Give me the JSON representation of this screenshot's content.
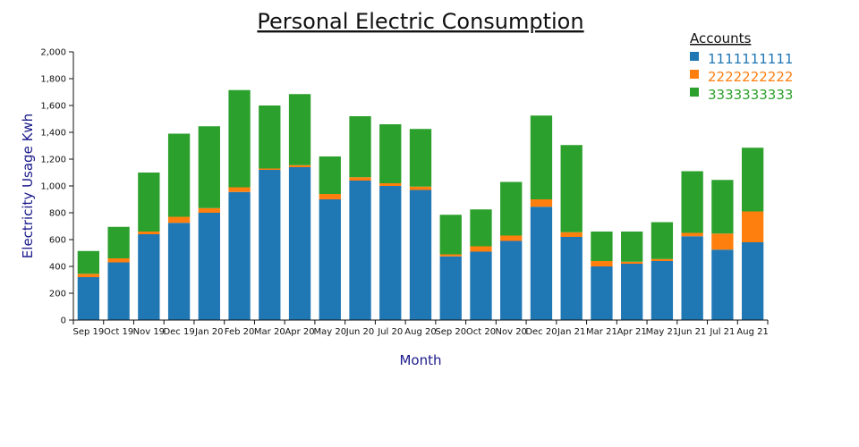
{
  "chart_data": {
    "type": "bar",
    "stacked": true,
    "title": "Personal Electric Consumption",
    "xlabel": "Month",
    "ylabel": "Electricity Usage Kwh",
    "ylim": [
      0,
      2000
    ],
    "yticks": [
      0,
      200,
      400,
      600,
      800,
      1000,
      1200,
      1400,
      1600,
      1800,
      2000
    ],
    "ytick_labels": [
      "0",
      "200",
      "400",
      "600",
      "800",
      "1,000",
      "1,200",
      "1,400",
      "1,600",
      "1,800",
      "2,000"
    ],
    "grid": false,
    "legend_title": "Accounts",
    "legend_position": "top-right",
    "categories": [
      "Sep 19",
      "Oct 19",
      "Nov 19",
      "Dec 19",
      "Jan 20",
      "Feb 20",
      "Mar 20",
      "Apr 20",
      "May 20",
      "Jun 20",
      "Jul 20",
      "Aug 20",
      "Sep 20",
      "Oct 20",
      "Nov 20",
      "Dec 20",
      "Jan 21",
      "Mar 21",
      "Apr 21",
      "May 21",
      "Jun 21",
      "Jul 21",
      "Aug 21"
    ],
    "series": [
      {
        "name": "1111111111",
        "color": "#1f77b4",
        "values": [
          320,
          430,
          640,
          725,
          800,
          955,
          1120,
          1140,
          900,
          1040,
          1000,
          970,
          475,
          510,
          590,
          845,
          620,
          400,
          420,
          440,
          625,
          525,
          580
        ]
      },
      {
        "name": "2222222222",
        "color": "#ff7f0e",
        "values": [
          25,
          30,
          20,
          45,
          35,
          35,
          10,
          15,
          40,
          25,
          20,
          25,
          15,
          40,
          40,
          55,
          35,
          40,
          15,
          15,
          25,
          120,
          230
        ]
      },
      {
        "name": "3333333333",
        "color": "#2ca02c",
        "values": [
          170,
          235,
          440,
          620,
          610,
          725,
          470,
          530,
          280,
          455,
          440,
          430,
          295,
          275,
          400,
          625,
          650,
          220,
          225,
          275,
          460,
          400,
          475
        ]
      }
    ]
  }
}
